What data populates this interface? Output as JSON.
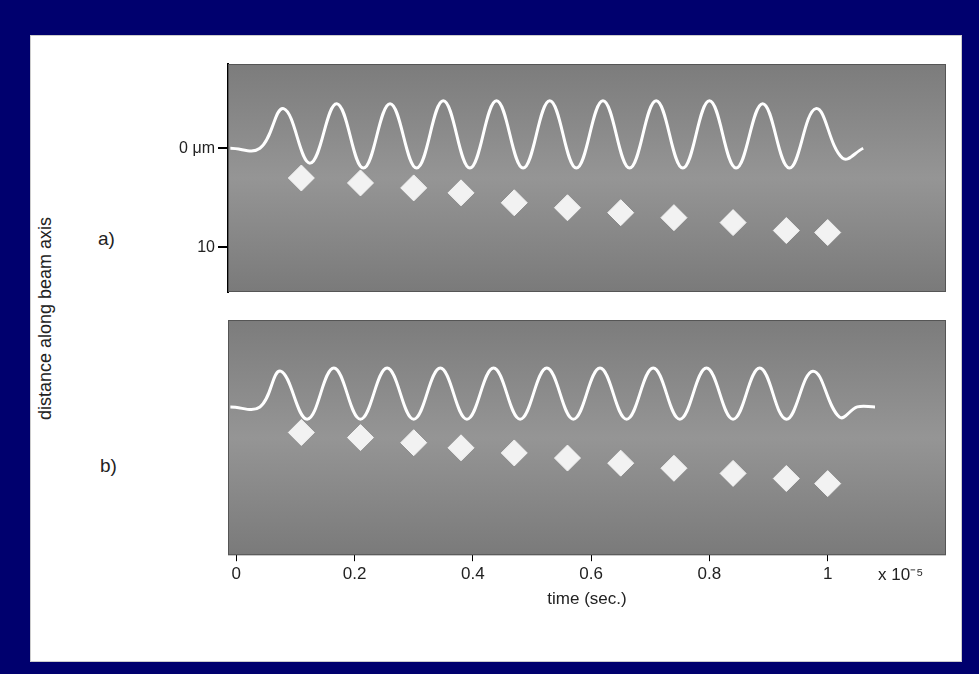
{
  "y_label": "distance along beam axis",
  "chart_data": [
    {
      "type": "line",
      "title": "a)",
      "tick_labels": "y",
      "grid": false,
      "xlim": [
        -0.014,
        1.2
      ],
      "ylim": [
        -8.5,
        14.5
      ],
      "yticks": [
        {
          "value": 0,
          "label": "0 μm"
        },
        10
      ],
      "series": [
        {
          "type": "line",
          "color": "#ffffff",
          "marker": "none",
          "line_style": "solid",
          "x": [
            -0.01,
            0.04,
            0.08,
            0.125,
            0.17,
            0.215,
            0.26,
            0.305,
            0.35,
            0.395,
            0.44,
            0.485,
            0.53,
            0.575,
            0.62,
            0.665,
            0.71,
            0.755,
            0.8,
            0.845,
            0.89,
            0.935,
            0.98,
            1.025,
            1.06
          ],
          "values": [
            0,
            0,
            -4,
            1.5,
            -4.5,
            2,
            -4.5,
            2,
            -4.8,
            2,
            -4.8,
            2,
            -4.8,
            2,
            -4.8,
            2,
            -4.8,
            2,
            -4.8,
            2,
            -4.5,
            2,
            -4,
            1,
            0
          ]
        },
        {
          "type": "scatter",
          "color": "#f2f2f2",
          "marker": "diamond",
          "x": [
            0.11,
            0.21,
            0.3,
            0.38,
            0.47,
            0.56,
            0.65,
            0.74,
            0.84,
            0.93,
            1.0
          ],
          "values": [
            3,
            3.5,
            4,
            4.5,
            5.5,
            6,
            6.5,
            7,
            7.5,
            8.3,
            8.5
          ]
        }
      ]
    },
    {
      "type": "line",
      "title": "b)",
      "tick_labels": "x",
      "grid": false,
      "x_label": "time (sec.)",
      "annotations": [
        "x 10⁻⁵"
      ],
      "xlim": [
        -0.014,
        1.2
      ],
      "ylim": [
        -8.5,
        14.5
      ],
      "xticks": [
        0,
        0.2,
        0.4,
        0.6,
        0.8,
        1
      ],
      "series": [
        {
          "type": "line",
          "color": "#ffffff",
          "marker": "none",
          "line_style": "solid",
          "x": [
            -0.01,
            0.04,
            0.075,
            0.12,
            0.165,
            0.21,
            0.255,
            0.3,
            0.345,
            0.39,
            0.435,
            0.48,
            0.525,
            0.57,
            0.615,
            0.66,
            0.705,
            0.75,
            0.795,
            0.84,
            0.885,
            0.93,
            0.975,
            1.02,
            1.05,
            1.08
          ],
          "values": [
            0,
            0,
            -3.5,
            1.2,
            -3.8,
            1.2,
            -3.8,
            1.2,
            -3.8,
            1.2,
            -3.8,
            1.2,
            -3.8,
            1.2,
            -3.8,
            1.2,
            -3.8,
            1.2,
            -3.8,
            1.2,
            -3.8,
            1.2,
            -3.5,
            1,
            0,
            0
          ]
        },
        {
          "type": "scatter",
          "color": "#f2f2f2",
          "marker": "diamond",
          "x": [
            0.11,
            0.21,
            0.3,
            0.38,
            0.47,
            0.56,
            0.65,
            0.74,
            0.84,
            0.93,
            1.0
          ],
          "values": [
            2.5,
            3,
            3.5,
            4,
            4.5,
            5,
            5.5,
            6,
            6.5,
            7,
            7.5
          ]
        }
      ]
    }
  ]
}
